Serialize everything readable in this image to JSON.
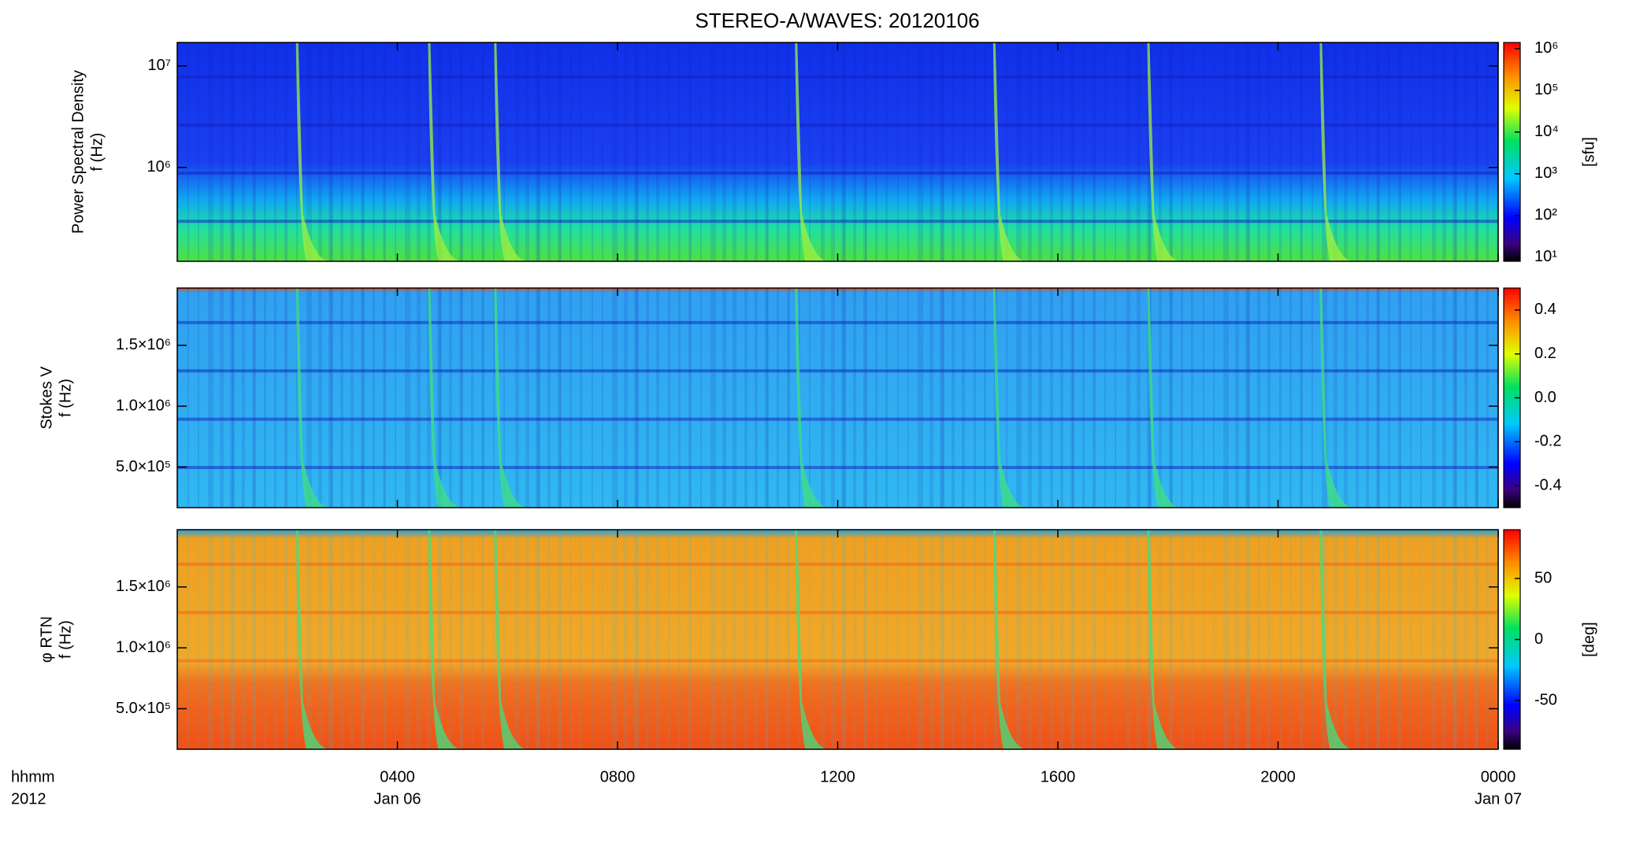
{
  "chart_data": {
    "type": "spectrogram",
    "title": "STEREO-A/WAVES: 20120106",
    "x_label_lines": [
      "hhmm",
      "2012"
    ],
    "xlim": [
      0,
      24
    ],
    "xticks": [
      {
        "value": 4,
        "label": "0400"
      },
      {
        "value": 8,
        "label": "0800"
      },
      {
        "value": 12,
        "label": "1200"
      },
      {
        "value": 16,
        "label": "1600"
      },
      {
        "value": 20,
        "label": "2000"
      },
      {
        "value": 24,
        "label": "0000"
      }
    ],
    "xtick_dates": [
      "Jan 06",
      null,
      null,
      null,
      null,
      "Jan 07"
    ],
    "panels": [
      {
        "ylabel": [
          "Power Spectral Density",
          "f (Hz)"
        ],
        "yscale": "log",
        "ylim": [
          119000,
          17000000
        ],
        "yticks": [
          {
            "value": 1000000,
            "label": "10⁶"
          },
          {
            "value": 10000000,
            "label": "10⁷"
          }
        ],
        "cbar_scale": "log",
        "cbar_lim": [
          8,
          1400000
        ],
        "cbar_ticks": [
          {
            "value": 10,
            "label": "10¹"
          },
          {
            "value": 100,
            "label": "10²"
          },
          {
            "value": 1000,
            "label": "10³"
          },
          {
            "value": 10000,
            "label": "10⁴"
          },
          {
            "value": 100000,
            "label": "10⁵"
          },
          {
            "value": 1000000,
            "label": "10⁶"
          }
        ],
        "cbar_label": "[sfu]"
      },
      {
        "ylabel": [
          "Stokes V",
          "f (Hz)"
        ],
        "yscale": "linear",
        "ylim": [
          167000,
          1970000
        ],
        "yticks": [
          {
            "value": 500000,
            "label": "5.0×10⁵"
          },
          {
            "value": 1000000,
            "label": "1.0×10⁶"
          },
          {
            "value": 1500000,
            "label": "1.5×10⁶"
          }
        ],
        "cbar_scale": "linear",
        "cbar_lim": [
          -0.5,
          0.5
        ],
        "cbar_ticks": [
          -0.4,
          -0.2,
          {
            "value": 0,
            "label": "0.0"
          },
          0.2,
          0.4
        ]
      },
      {
        "ylabel": [
          "φ RTN",
          "f (Hz)"
        ],
        "yscale": "linear",
        "ylim": [
          167000,
          1970000
        ],
        "yticks": [
          {
            "value": 500000,
            "label": "5.0×10⁵"
          },
          {
            "value": 1000000,
            "label": "1.0×10⁶"
          },
          {
            "value": 1500000,
            "label": "1.5×10⁶"
          }
        ],
        "cbar_scale": "linear",
        "cbar_lim": [
          -90,
          90
        ],
        "cbar_ticks": [
          -50,
          0,
          50
        ],
        "cbar_label": "[deg]"
      }
    ]
  }
}
